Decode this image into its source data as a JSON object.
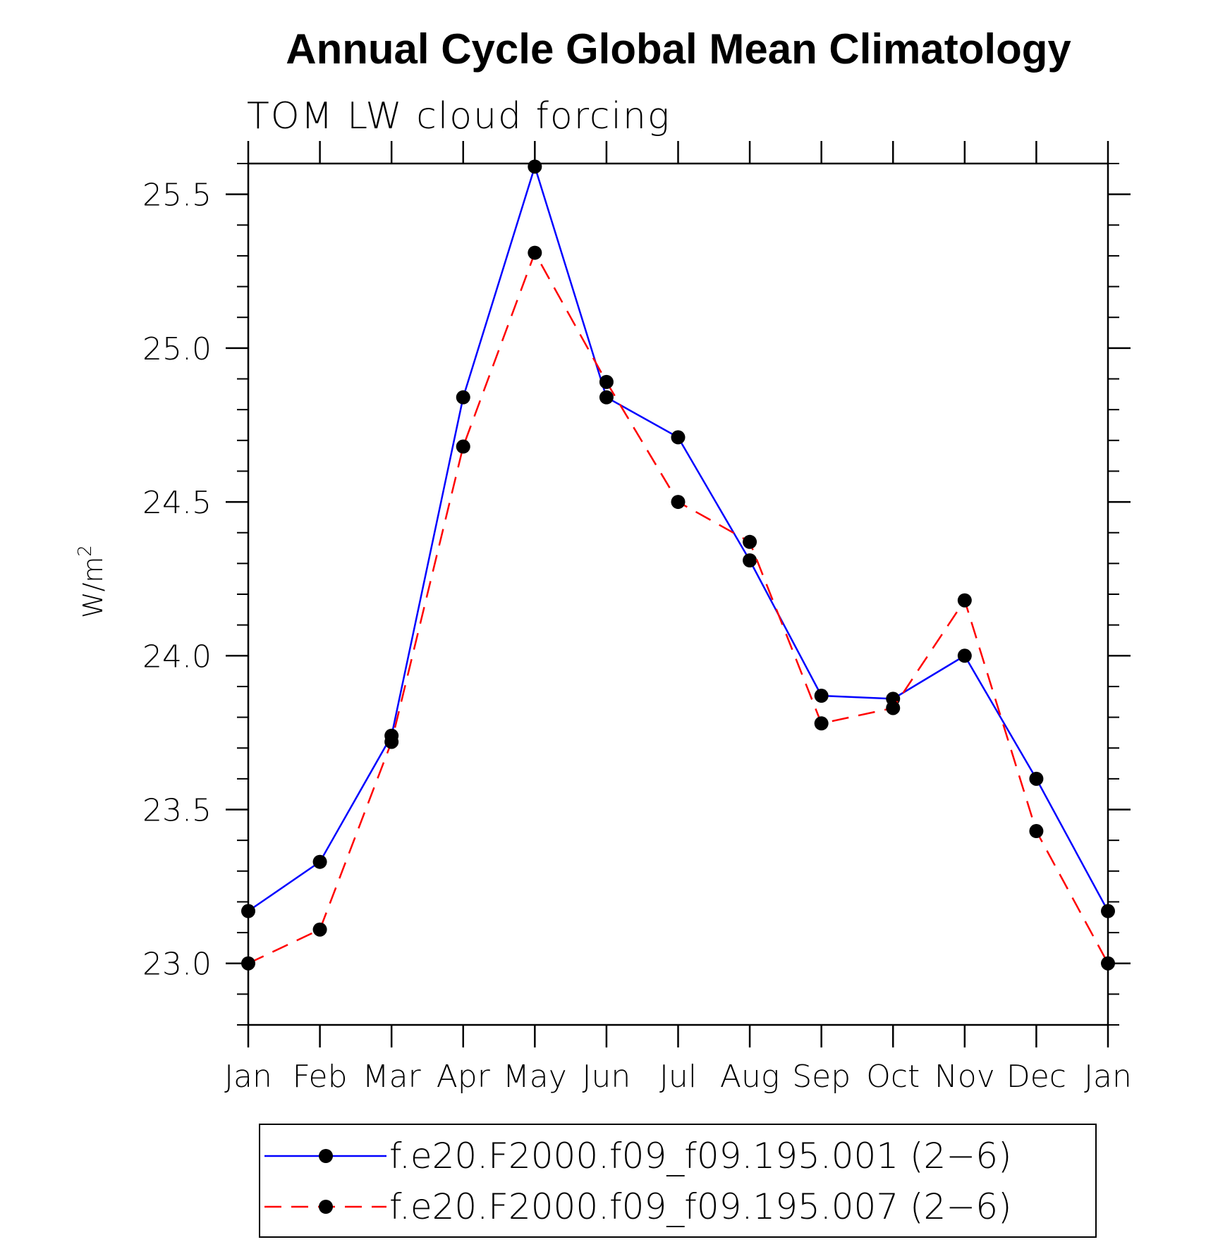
{
  "chart_data": {
    "type": "line",
    "title": "Annual Cycle Global Mean Climatology",
    "subtitle": "TOM LW cloud forcing",
    "ylabel": "W/m",
    "ylabel_superscript": "2",
    "xlabel": "",
    "categories": [
      "Jan",
      "Feb",
      "Mar",
      "Apr",
      "May",
      "Jun",
      "Jul",
      "Aug",
      "Sep",
      "Oct",
      "Nov",
      "Dec",
      "Jan"
    ],
    "ylim": [
      22.8,
      25.6
    ],
    "yticks": [
      "23.0",
      "23.5",
      "24.0",
      "24.5",
      "25.0",
      "25.5"
    ],
    "ytick_values": [
      23.0,
      23.5,
      24.0,
      24.5,
      25.0,
      25.5
    ],
    "yminor_step": 0.1,
    "grid": false,
    "legend_position": "bottom",
    "series": [
      {
        "name": "f.e20.F2000.f09_f09.195.001 (2−6)",
        "color": "#0000ff",
        "dash": "solid",
        "marker": "filled-circle",
        "values": [
          23.17,
          23.33,
          23.74,
          24.84,
          25.59,
          24.84,
          24.71,
          24.31,
          23.87,
          23.86,
          24.0,
          23.6,
          23.17
        ]
      },
      {
        "name": "f.e20.F2000.f09_f09.195.007 (2−6)",
        "color": "#ff0000",
        "dash": "dashed",
        "marker": "filled-circle",
        "values": [
          23.0,
          23.11,
          23.72,
          24.68,
          25.31,
          24.89,
          24.5,
          24.37,
          23.78,
          23.83,
          24.18,
          23.43,
          23.0
        ]
      }
    ]
  }
}
